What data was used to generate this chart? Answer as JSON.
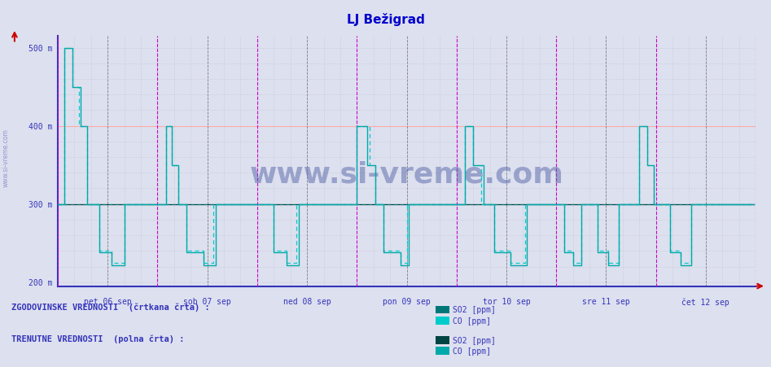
{
  "title": "LJ Bežigrad",
  "title_color": "#0000cc",
  "bg_color": "#dde0ee",
  "plot_bg_color": "#dde0ee",
  "ylim": [
    195,
    515
  ],
  "ytick_positions": [
    200,
    300,
    400,
    500
  ],
  "ytick_labels": [
    "200 m",
    "300 m",
    "400 m",
    "500 m"
  ],
  "x_tick_labels": [
    "pet 06 sep",
    "sob 07 sep",
    "ned 08 sep",
    "pon 09 sep",
    "tor 10 sep",
    "sre 11 sep",
    "čet 12 sep"
  ],
  "day_vline_color_magenta": "#cc00cc",
  "day_vline_color_dark": "#444444",
  "hline_color_pink": "#ffaaaa",
  "grid_dot_color": "#bbbbcc",
  "co_hist_color": "#00cccc",
  "so2_hist_color": "#007777",
  "co_cur_color": "#00aaaa",
  "so2_cur_color": "#004444",
  "arrow_color": "#cc0000",
  "axis_color": "#3333bb",
  "font_color": "#3333bb",
  "watermark_color": "#5566aa",
  "side_text_color": "#8888cc",
  "legend_hist_label": "ZGODOVINSKE VREDNOSTI  (črtkana črta) :",
  "legend_cur_label": "TRENUTNE VREDNOSTI  (polna črta) :",
  "so2_label": "SO2 [ppm]",
  "co_label": "CO [ppm]"
}
